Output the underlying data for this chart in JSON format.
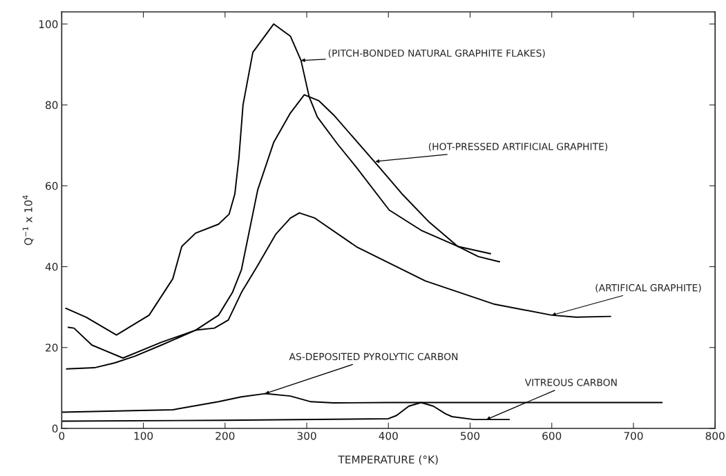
{
  "chart_data": {
    "type": "line",
    "xlabel": "TEMPERATURE (°K)",
    "ylabel": "Q$^{−1}$ x 10$^{4}$",
    "xlim": [
      0,
      800
    ],
    "ylim": [
      0,
      103
    ],
    "xticks": [
      0,
      100,
      200,
      300,
      400,
      500,
      600,
      700,
      800
    ],
    "yticks": [
      0,
      20,
      40,
      60,
      80,
      100
    ],
    "grid": false,
    "legend": false,
    "marker": "none",
    "line_style": "solid",
    "series": [
      {
        "color": "#000000",
        "x": [
          5,
          30,
          67,
          107,
          136,
          147,
          164,
          192,
          205,
          212,
          217,
          222,
          234,
          259.5,
          280,
          293,
          303,
          313,
          337,
          361,
          401,
          440,
          485,
          525
        ],
        "values": [
          29.7,
          27.5,
          23.1,
          28,
          37,
          45,
          48.3,
          50.5,
          53,
          58,
          67,
          80,
          93,
          100,
          97,
          91,
          82,
          77,
          70.5,
          64.5,
          54,
          49,
          45,
          43.2
        ]
      },
      {
        "color": "#000000",
        "x": [
          6,
          40,
          65,
          90,
          122,
          164,
          192,
          209,
          220,
          240,
          259.5,
          280,
          297,
          315,
          333,
          384,
          418,
          450,
          485,
          510,
          536
        ],
        "values": [
          14.7,
          15,
          16.2,
          17.9,
          20.6,
          24.3,
          28,
          33.6,
          39.2,
          59,
          70.7,
          78,
          82.5,
          81,
          77.5,
          65.7,
          57.7,
          51,
          45,
          42.5,
          41.2
        ]
      },
      {
        "color": "#000000",
        "x": [
          8,
          15,
          37,
          75,
          122,
          164,
          187,
          204,
          220,
          240,
          262,
          280,
          291,
          310,
          361,
          445,
          530,
          600,
          630,
          672
        ],
        "values": [
          25,
          24.8,
          20.6,
          17.4,
          21.3,
          24.3,
          24.8,
          26.8,
          33.6,
          40.3,
          48,
          52,
          53.3,
          52,
          44.9,
          36.5,
          30.7,
          28,
          27.5,
          27.7
        ]
      },
      {
        "color": "#000000",
        "x": [
          0,
          136,
          192,
          220,
          249,
          280,
          305,
          333,
          400,
          735
        ],
        "values": [
          4,
          4.6,
          6.6,
          7.8,
          8.6,
          8,
          6.6,
          6.3,
          6.4,
          6.4
        ]
      },
      {
        "color": "#000000",
        "x": [
          0,
          200,
          400,
          410,
          425,
          440,
          455,
          470,
          478,
          505,
          548
        ],
        "values": [
          1.8,
          2,
          2.4,
          3.2,
          5.5,
          6.4,
          5.5,
          3.6,
          2.9,
          2.2,
          2.2
        ]
      }
    ],
    "annotations": [
      {
        "text": "(PITCH-BONDED NATURAL GRAPHITE FLAKES)",
        "x": 293,
        "y": 91
      },
      {
        "text": "(HOT-PRESSED ARTIFICIAL GRAPHITE)",
        "x": 384,
        "y": 66
      },
      {
        "text": "(ARTIFICAL GRAPHITE)",
        "x": 600,
        "y": 28
      },
      {
        "text": "AS-DEPOSITED PYROLYTIC CARBON",
        "x": 249,
        "y": 8.6
      },
      {
        "text": "VITREOUS CARBON",
        "x": 520,
        "y": 2.2
      }
    ]
  }
}
